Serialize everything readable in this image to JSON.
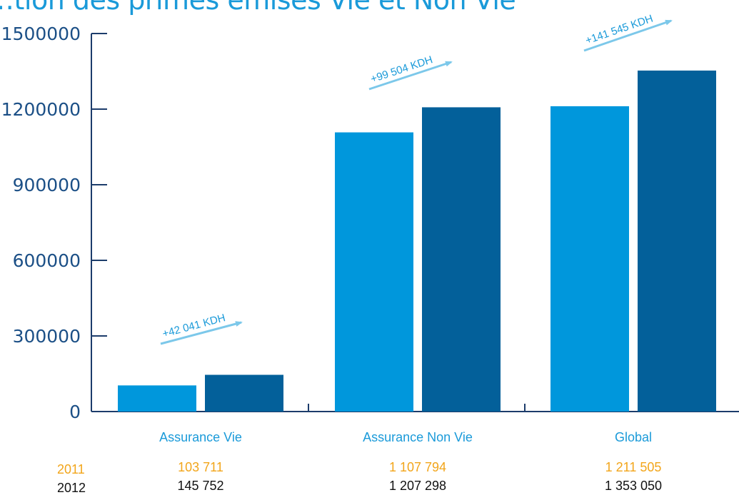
{
  "chart_data": {
    "type": "bar",
    "title": "…tion des primes émises Vie et Non Vie",
    "categories": [
      "Assurance Vie",
      "Assurance Non Vie",
      "Global"
    ],
    "series": [
      {
        "name": "2011",
        "values": [
          103711,
          1107794,
          1211505
        ],
        "labels": [
          "103 711",
          "1 107 794",
          "1 211 505"
        ]
      },
      {
        "name": "2012",
        "values": [
          145752,
          1207298,
          1353050
        ],
        "labels": [
          "145 752",
          "1 207 298",
          "1 353 050"
        ]
      }
    ],
    "ylim": [
      0,
      1500000
    ],
    "yticks": [
      0,
      300000,
      600000,
      900000,
      1200000,
      1500000
    ],
    "annotations": [
      "+42 041 KDH",
      "+99 504 KDH",
      "+141 545  KDH"
    ],
    "grid": false,
    "legend": "bottom-left"
  },
  "colors": {
    "s2011": "#0097dc",
    "s2012": "#03609a",
    "axis": "#1c3c6b",
    "arrow": "#7cc8ea",
    "label2011": "#f2a51a",
    "category": "#1a9ad9"
  }
}
